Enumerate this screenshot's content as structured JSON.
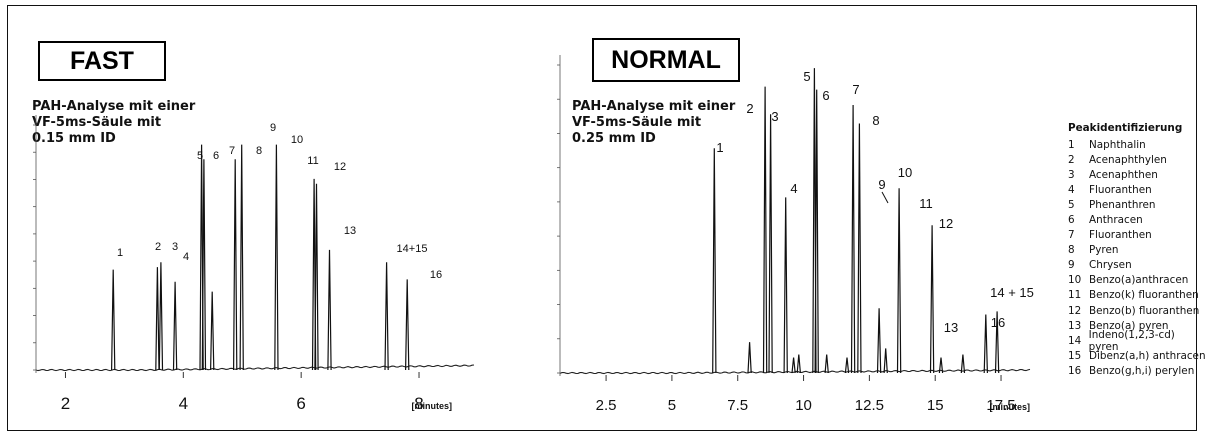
{
  "chart_data": [
    {
      "type": "line",
      "badge": "FAST",
      "annotation": "PAH-Analyse mit einer\nVF-5ms-Säule mit\n0.15 mm ID",
      "x_ticks": [
        "2",
        "4",
        "6",
        "8"
      ],
      "x_unit": "[minutes]",
      "xlim": [
        1.5,
        8.95
      ],
      "peaks": [
        {
          "label": "1",
          "x": 2.81,
          "height": 0.41
        },
        {
          "label": "2",
          "x": 3.56,
          "height": 0.42
        },
        {
          "label": "",
          "x": 3.62,
          "height": 0.44
        },
        {
          "label": "3",
          "x": 3.63,
          "height": 0.0
        },
        {
          "label": "4",
          "x": 3.86,
          "height": 0.36
        },
        {
          "label": "5",
          "x": 4.31,
          "height": 0.92
        },
        {
          "label": "6",
          "x": 4.35,
          "height": 0.86
        },
        {
          "label": "",
          "x": 4.49,
          "height": 0.32
        },
        {
          "label": "7",
          "x": 4.88,
          "height": 0.86
        },
        {
          "label": "8",
          "x": 4.99,
          "height": 0.92
        },
        {
          "label": "9",
          "x": 5.58,
          "height": 0.92
        },
        {
          "label": "10",
          "x": 5.6,
          "height": 0.0
        },
        {
          "label": "11",
          "x": 6.22,
          "height": 0.78
        },
        {
          "label": "12",
          "x": 6.26,
          "height": 0.76
        },
        {
          "label": "13",
          "x": 6.48,
          "height": 0.49
        },
        {
          "label": "14+15",
          "x": 7.45,
          "height": 0.44
        },
        {
          "label": "16",
          "x": 7.8,
          "height": 0.37
        }
      ]
    },
    {
      "type": "line",
      "badge": "NORMAL",
      "annotation": "PAH-Analyse mit einer\nVF-5ms-Säule mit\n0.25 mm ID",
      "x_ticks": [
        "2.5",
        "5",
        "7.5",
        "10",
        "12.5",
        "15",
        "17.5"
      ],
      "x_unit": "[minutes]",
      "xlim": [
        0.75,
        18.6
      ],
      "peaks": [
        {
          "label": "1",
          "x": 6.61,
          "height": 0.73
        },
        {
          "label": "",
          "x": 7.95,
          "height": 0.1
        },
        {
          "label": "2",
          "x": 8.54,
          "height": 0.93
        },
        {
          "label": "3",
          "x": 8.75,
          "height": 0.84
        },
        {
          "label": "4",
          "x": 9.32,
          "height": 0.57
        },
        {
          "label": "",
          "x": 9.62,
          "height": 0.05
        },
        {
          "label": "",
          "x": 9.82,
          "height": 0.06
        },
        {
          "label": "5",
          "x": 10.41,
          "height": 0.99
        },
        {
          "label": "6",
          "x": 10.5,
          "height": 0.92
        },
        {
          "label": "",
          "x": 10.88,
          "height": 0.06
        },
        {
          "label": "",
          "x": 11.65,
          "height": 0.05
        },
        {
          "label": "7",
          "x": 11.88,
          "height": 0.87
        },
        {
          "label": "8",
          "x": 12.12,
          "height": 0.81
        },
        {
          "label": "",
          "x": 12.87,
          "height": 0.21
        },
        {
          "label": "",
          "x": 13.12,
          "height": 0.08
        },
        {
          "label": "10",
          "x": 13.63,
          "height": 0.6
        },
        {
          "label": "9",
          "x": 13.65,
          "height": 0.0
        },
        {
          "label": "11",
          "x": 14.88,
          "height": 0.48
        },
        {
          "label": "12",
          "x": 14.93,
          "height": 0.0
        },
        {
          "label": "13",
          "x": 15.22,
          "height": 0.05
        },
        {
          "label": "",
          "x": 16.05,
          "height": 0.06
        },
        {
          "label": "14 + 15",
          "x": 16.92,
          "height": 0.19
        },
        {
          "label": "16",
          "x": 17.35,
          "height": 0.2
        }
      ]
    }
  ],
  "legend": {
    "title": "Peakidentifizierung",
    "items": [
      {
        "num": "1",
        "name": "Naphthalin"
      },
      {
        "num": "2",
        "name": "Acenaphthylen"
      },
      {
        "num": "3",
        "name": "Acenaphthen"
      },
      {
        "num": "4",
        "name": "Fluoranthen"
      },
      {
        "num": "5",
        "name": "Phenanthren"
      },
      {
        "num": "6",
        "name": "Anthracen"
      },
      {
        "num": "7",
        "name": "Fluoranthen"
      },
      {
        "num": "8",
        "name": "Pyren"
      },
      {
        "num": "9",
        "name": "Chrysen"
      },
      {
        "num": "10",
        "name": "Benzo(a)anthracen"
      },
      {
        "num": "11",
        "name": "Benzo(k) fluoranthen"
      },
      {
        "num": "12",
        "name": "Benzo(b) fluoranthen"
      },
      {
        "num": "13",
        "name": "Benzo(a) pyren"
      },
      {
        "num": "14",
        "name": "Indeno(1,2,3-cd) pyren"
      },
      {
        "num": "15",
        "name": "Dibenz(a,h) anthracen"
      },
      {
        "num": "16",
        "name": "Benzo(g,h,i) perylen"
      }
    ]
  }
}
